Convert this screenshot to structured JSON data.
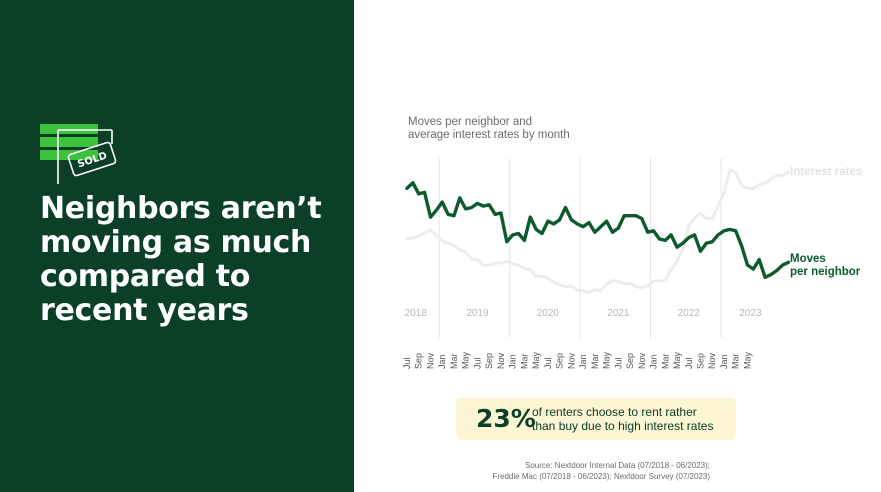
{
  "headline": "Neighbors aren’t moving as much compared to recent years",
  "icon_label": "SOLD",
  "chart_title": [
    "Moves per neighbor and",
    "average interest rates by month"
  ],
  "callout": {
    "value": "23%",
    "text": [
      "of renters choose to rent rather",
      "than buy due to high interest rates"
    ]
  },
  "source": [
    "Source: Nextdoor Internal Data (07/2018 - 06/2023);",
    "Freddie Mac (07/2018 - 06/2023); Nextdoor Survey (07/2023)"
  ],
  "colors": {
    "panel": "#0b4026",
    "accent_green": "#3cc23c",
    "moves_line": "#0d5a2f",
    "rates_line": "#ececec",
    "callout_bg": "#fbf5d3"
  },
  "chart_data": {
    "type": "line",
    "title": "Moves per neighbor and average interest rates by month",
    "x_tick_labels": [
      "Jul",
      "Sep",
      "Nov",
      "Jan",
      "Mar",
      "May",
      "Jul",
      "Sep",
      "Nov",
      "Jan",
      "Mar",
      "May",
      "Jul",
      "Sep",
      "Nov",
      "Jan",
      "Mar",
      "May",
      "Jul",
      "Sep",
      "Nov",
      "Jan",
      "Mar",
      "May",
      "Jul",
      "Sep",
      "Nov",
      "Jan",
      "Mar",
      "May"
    ],
    "year_labels": [
      "2018",
      "2019",
      "2020",
      "2021",
      "2022",
      "2023"
    ],
    "series": [
      {
        "name": "Interest rates",
        "color": "#ececec",
        "values": [
          4.53,
          4.55,
          4.63,
          4.71,
          4.83,
          4.64,
          4.45,
          4.37,
          4.28,
          4.14,
          4.06,
          3.82,
          3.8,
          3.62,
          3.61,
          3.7,
          3.69,
          3.74,
          3.66,
          3.62,
          3.5,
          3.45,
          3.24,
          3.23,
          3.16,
          3.02,
          2.94,
          2.87,
          2.9,
          2.76,
          2.73,
          2.68,
          2.77,
          2.74,
          2.97,
          3.08,
          3.06,
          2.96,
          3.0,
          2.87,
          2.84,
          2.9,
          3.07,
          3.07,
          3.1,
          3.45,
          3.76,
          4.17,
          4.98,
          5.23,
          5.41,
          5.22,
          5.22,
          5.66,
          6.11,
          6.9,
          6.81,
          6.36,
          6.27,
          6.26,
          6.39,
          6.43,
          6.58,
          6.7,
          6.71,
          6.83
        ]
      },
      {
        "name": "Moves per neighbor",
        "color": "#0d5a2f",
        "values": [
          0.64,
          0.68,
          0.6,
          0.61,
          0.43,
          0.48,
          0.54,
          0.45,
          0.44,
          0.57,
          0.49,
          0.5,
          0.53,
          0.51,
          0.52,
          0.45,
          0.46,
          0.25,
          0.3,
          0.31,
          0.26,
          0.43,
          0.34,
          0.31,
          0.4,
          0.38,
          0.41,
          0.5,
          0.41,
          0.38,
          0.36,
          0.39,
          0.32,
          0.36,
          0.4,
          0.32,
          0.35,
          0.44,
          0.44,
          0.44,
          0.42,
          0.32,
          0.33,
          0.27,
          0.26,
          0.3,
          0.21,
          0.24,
          0.28,
          0.3,
          0.18,
          0.24,
          0.25,
          0.3,
          0.33,
          0.34,
          0.33,
          0.22,
          0.08,
          0.05,
          0.12,
          -0.01,
          0.01,
          0.04,
          0.08,
          0.1
        ]
      }
    ],
    "grid": "vertical year dividers"
  }
}
